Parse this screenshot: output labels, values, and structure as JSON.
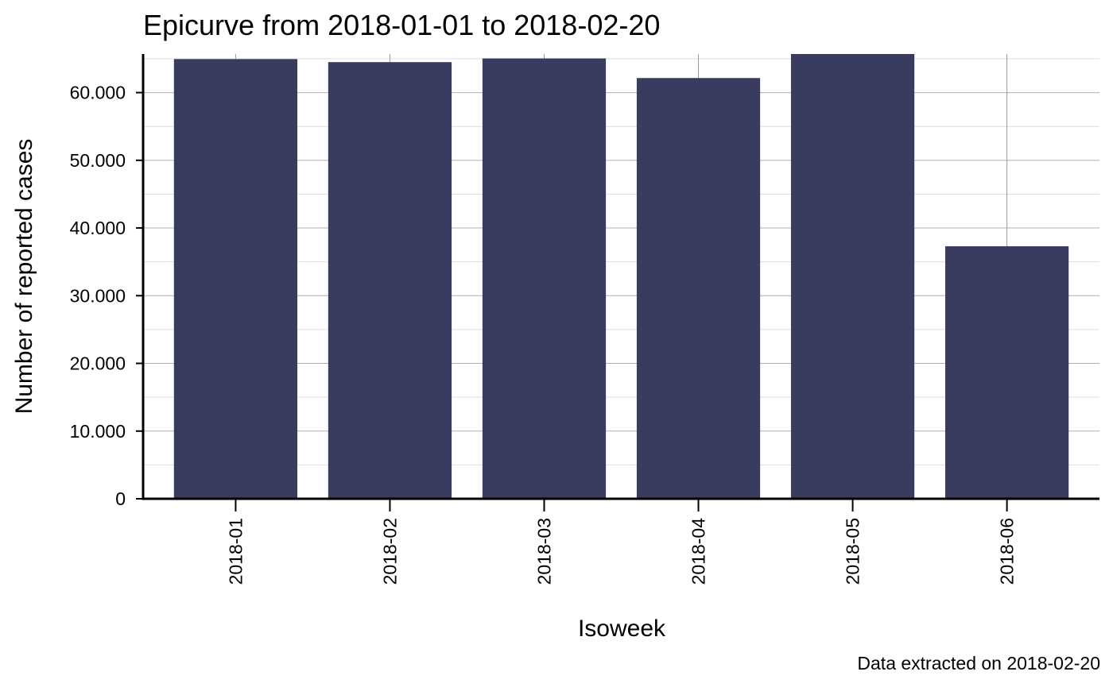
{
  "chart_data": {
    "type": "bar",
    "title": "Epicurve from 2018-01-01 to 2018-02-20",
    "xlabel": "Isoweek",
    "ylabel": "Number of reported cases",
    "caption": "Data extracted on 2018-02-20",
    "categories": [
      "2018-01",
      "2018-02",
      "2018-03",
      "2018-04",
      "2018-05",
      "2018-06"
    ],
    "values": [
      64950,
      64500,
      65050,
      62150,
      65700,
      37300
    ],
    "ylim": [
      0,
      65700
    ],
    "yticks": [
      0,
      10000,
      20000,
      30000,
      40000,
      50000,
      60000
    ],
    "ytick_labels": [
      "0",
      "10.000",
      "20.000",
      "30.000",
      "40.000",
      "50.000",
      "60.000"
    ],
    "grid": true,
    "bar_color": "#393c5f"
  }
}
